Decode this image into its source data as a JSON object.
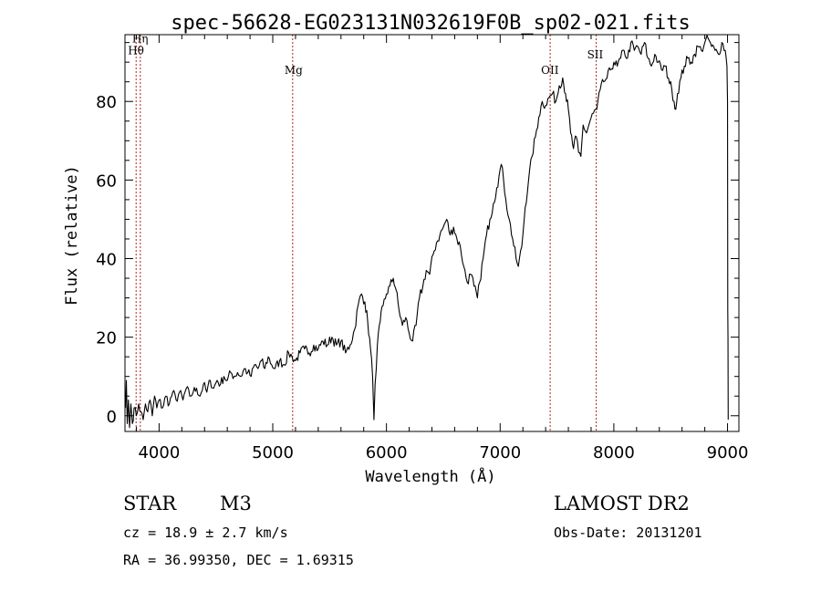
{
  "chart_data": {
    "type": "line",
    "title": "spec-56628-EG023131N032619F0B_sp02-021.fits",
    "xlabel": "Wavelength (Å)",
    "ylabel": "Flux (relative)",
    "xlim": [
      3700,
      9100
    ],
    "ylim": [
      -4,
      97
    ],
    "xticks": [
      {
        "value": 4000,
        "label": "4000"
      },
      {
        "value": 5000,
        "label": "5000"
      },
      {
        "value": 6000,
        "label": "6000"
      },
      {
        "value": 7000,
        "label": "7000"
      },
      {
        "value": 8000,
        "label": "8000"
      },
      {
        "value": 9000,
        "label": "9000"
      }
    ],
    "yticks": [
      {
        "value": 0,
        "label": "0"
      },
      {
        "value": 20,
        "label": "20"
      },
      {
        "value": 40,
        "label": "40"
      },
      {
        "value": 60,
        "label": "60"
      },
      {
        "value": 80,
        "label": "80"
      }
    ],
    "lines": [
      {
        "label": "Hη",
        "wavelength": 3835,
        "label_y": 95
      },
      {
        "label": "Hθ",
        "wavelength": 3798,
        "label_y": 92
      },
      {
        "label": "Mg",
        "wavelength": 5175,
        "label_y": 87
      },
      {
        "label": "OII",
        "wavelength": 7440,
        "label_y": 87
      },
      {
        "label": "SII",
        "wavelength": 7845,
        "label_y": 91
      }
    ],
    "series": [
      {
        "points": [
          [
            3705,
            2
          ],
          [
            3712,
            9
          ],
          [
            3720,
            -2
          ],
          [
            3730,
            4
          ],
          [
            3740,
            -3
          ],
          [
            3752,
            3
          ],
          [
            3765,
            -2
          ],
          [
            3780,
            2
          ],
          [
            3800,
            0
          ],
          [
            3820,
            3
          ],
          [
            3840,
            1
          ],
          [
            3860,
            -1
          ],
          [
            3880,
            3
          ],
          [
            3900,
            1
          ],
          [
            3920,
            4
          ],
          [
            3940,
            0
          ],
          [
            3960,
            5
          ],
          [
            3980,
            2
          ],
          [
            4000,
            4
          ],
          [
            4030,
            2
          ],
          [
            4060,
            5
          ],
          [
            4090,
            3
          ],
          [
            4120,
            6
          ],
          [
            4150,
            4
          ],
          [
            4180,
            6
          ],
          [
            4210,
            4
          ],
          [
            4240,
            7
          ],
          [
            4270,
            5
          ],
          [
            4300,
            6
          ],
          [
            4330,
            7
          ],
          [
            4360,
            5
          ],
          [
            4390,
            8
          ],
          [
            4420,
            6
          ],
          [
            4450,
            9
          ],
          [
            4480,
            7
          ],
          [
            4510,
            9
          ],
          [
            4540,
            8
          ],
          [
            4570,
            10
          ],
          [
            4600,
            9
          ],
          [
            4630,
            11
          ],
          [
            4660,
            10
          ],
          [
            4690,
            11
          ],
          [
            4720,
            10
          ],
          [
            4750,
            12
          ],
          [
            4780,
            11
          ],
          [
            4810,
            10
          ],
          [
            4840,
            13
          ],
          [
            4870,
            12
          ],
          [
            4900,
            14
          ],
          [
            4930,
            12
          ],
          [
            4960,
            15
          ],
          [
            4990,
            13
          ],
          [
            5020,
            12
          ],
          [
            5060,
            14
          ],
          [
            5100,
            13
          ],
          [
            5140,
            16
          ],
          [
            5170,
            15
          ],
          [
            5200,
            14
          ],
          [
            5240,
            16
          ],
          [
            5280,
            17
          ],
          [
            5320,
            16
          ],
          [
            5360,
            18
          ],
          [
            5400,
            17
          ],
          [
            5440,
            19
          ],
          [
            5480,
            18
          ],
          [
            5520,
            20
          ],
          [
            5560,
            18
          ],
          [
            5600,
            19
          ],
          [
            5640,
            16
          ],
          [
            5680,
            18
          ],
          [
            5720,
            22
          ],
          [
            5750,
            28
          ],
          [
            5780,
            31
          ],
          [
            5810,
            29
          ],
          [
            5835,
            24
          ],
          [
            5860,
            17
          ],
          [
            5878,
            10
          ],
          [
            5890,
            -1
          ],
          [
            5900,
            8
          ],
          [
            5920,
            18
          ],
          [
            5945,
            24
          ],
          [
            5970,
            28
          ],
          [
            6000,
            31
          ],
          [
            6030,
            33
          ],
          [
            6060,
            35
          ],
          [
            6085,
            32
          ],
          [
            6110,
            27
          ],
          [
            6140,
            23
          ],
          [
            6170,
            25
          ],
          [
            6200,
            21
          ],
          [
            6230,
            19
          ],
          [
            6260,
            23
          ],
          [
            6290,
            30
          ],
          [
            6320,
            33
          ],
          [
            6350,
            37
          ],
          [
            6380,
            36
          ],
          [
            6410,
            41
          ],
          [
            6440,
            44
          ],
          [
            6470,
            46
          ],
          [
            6500,
            48
          ],
          [
            6530,
            50
          ],
          [
            6560,
            46
          ],
          [
            6590,
            48
          ],
          [
            6620,
            45
          ],
          [
            6650,
            43
          ],
          [
            6680,
            38
          ],
          [
            6710,
            34
          ],
          [
            6740,
            36
          ],
          [
            6770,
            33
          ],
          [
            6800,
            30
          ],
          [
            6820,
            34
          ],
          [
            6850,
            40
          ],
          [
            6880,
            46
          ],
          [
            6910,
            50
          ],
          [
            6940,
            54
          ],
          [
            6970,
            58
          ],
          [
            6990,
            61
          ],
          [
            7010,
            64
          ],
          [
            7030,
            60
          ],
          [
            7050,
            55
          ],
          [
            7080,
            50
          ],
          [
            7110,
            45
          ],
          [
            7140,
            40
          ],
          [
            7160,
            38
          ],
          [
            7190,
            43
          ],
          [
            7220,
            53
          ],
          [
            7250,
            60
          ],
          [
            7280,
            66
          ],
          [
            7310,
            71
          ],
          [
            7340,
            76
          ],
          [
            7370,
            80
          ],
          [
            7400,
            79
          ],
          [
            7430,
            81
          ],
          [
            7460,
            82
          ],
          [
            7490,
            80
          ],
          [
            7520,
            84
          ],
          [
            7550,
            86
          ],
          [
            7575,
            82
          ],
          [
            7600,
            78
          ],
          [
            7620,
            72
          ],
          [
            7645,
            68
          ],
          [
            7670,
            71
          ],
          [
            7690,
            67
          ],
          [
            7710,
            66
          ],
          [
            7730,
            74
          ],
          [
            7760,
            72
          ],
          [
            7790,
            75
          ],
          [
            7820,
            77
          ],
          [
            7850,
            78
          ],
          [
            7880,
            83
          ],
          [
            7910,
            85
          ],
          [
            7940,
            86
          ],
          [
            7970,
            88
          ],
          [
            8000,
            90
          ],
          [
            8030,
            89
          ],
          [
            8060,
            91
          ],
          [
            8090,
            93
          ],
          [
            8120,
            91
          ],
          [
            8150,
            95
          ],
          [
            8180,
            93
          ],
          [
            8210,
            94
          ],
          [
            8240,
            92
          ],
          [
            8270,
            95
          ],
          [
            8300,
            91
          ],
          [
            8330,
            89
          ],
          [
            8360,
            92
          ],
          [
            8390,
            90
          ],
          [
            8420,
            88
          ],
          [
            8450,
            89
          ],
          [
            8480,
            86
          ],
          [
            8510,
            83
          ],
          [
            8530,
            80
          ],
          [
            8545,
            78
          ],
          [
            8560,
            82
          ],
          [
            8590,
            86
          ],
          [
            8620,
            89
          ],
          [
            8650,
            91
          ],
          [
            8680,
            90
          ],
          [
            8710,
            92
          ],
          [
            8740,
            94
          ],
          [
            8770,
            93
          ],
          [
            8800,
            95
          ],
          [
            8830,
            96
          ],
          [
            8860,
            94
          ],
          [
            8890,
            93
          ],
          [
            8920,
            92
          ],
          [
            8950,
            95
          ],
          [
            8980,
            93
          ],
          [
            8995,
            89
          ],
          [
            9000,
            80
          ],
          [
            9002,
            27
          ],
          [
            9004,
            20
          ],
          [
            9006,
            -1
          ]
        ]
      }
    ]
  },
  "info": {
    "object_class": "STAR",
    "subclass": "M3",
    "survey": "LAMOST DR2",
    "redshift_line": "cz = 18.9 ± 2.7 km/s",
    "obs_date": "Obs-Date: 20131201",
    "coords": "RA =  36.99350, DEC =   1.69315"
  },
  "colors": {
    "spectrum": "#000000",
    "line_marker": "#b22222",
    "axis": "#000000"
  }
}
